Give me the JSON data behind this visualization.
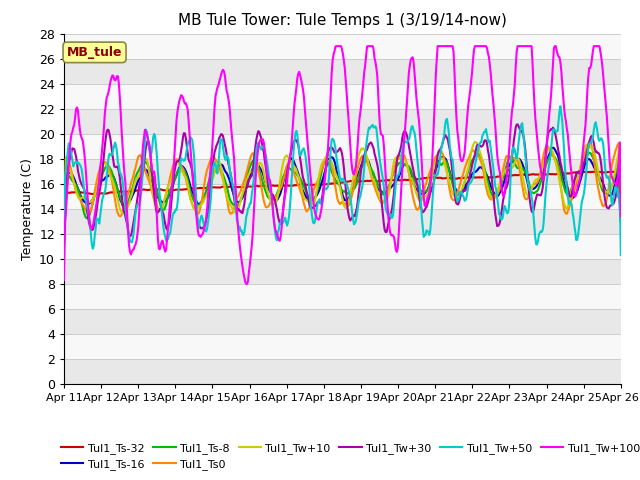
{
  "title": "MB Tule Tower: Tule Temps 1 (3/19/14-now)",
  "ylabel": "Temperature (C)",
  "ylim": [
    0,
    28
  ],
  "yticks": [
    0,
    2,
    4,
    6,
    8,
    10,
    12,
    14,
    16,
    18,
    20,
    22,
    24,
    26,
    28
  ],
  "xlim": [
    0,
    15
  ],
  "xtick_labels": [
    "Apr 11",
    "Apr 12",
    "Apr 13",
    "Apr 14",
    "Apr 15",
    "Apr 16",
    "Apr 17",
    "Apr 18",
    "Apr 19",
    "Apr 20",
    "Apr 21",
    "Apr 22",
    "Apr 23",
    "Apr 24",
    "Apr 25",
    "Apr 26"
  ],
  "legend_box_label": "MB_tule",
  "legend_box_color": "#8B0000",
  "legend_box_bg": "#FFFF99",
  "series": {
    "Tul1_Ts-32": {
      "color": "#CC0000",
      "linewidth": 1.5
    },
    "Tul1_Ts-16": {
      "color": "#0000CC",
      "linewidth": 1.5
    },
    "Tul1_Ts-8": {
      "color": "#00BB00",
      "linewidth": 1.5
    },
    "Tul1_Ts0": {
      "color": "#FF8800",
      "linewidth": 1.5
    },
    "Tul1_Tw+10": {
      "color": "#CCCC00",
      "linewidth": 1.5
    },
    "Tul1_Tw+30": {
      "color": "#AA00AA",
      "linewidth": 1.5
    },
    "Tul1_Tw+50": {
      "color": "#00CCCC",
      "linewidth": 1.5
    },
    "Tul1_Tw+100": {
      "color": "#FF00FF",
      "linewidth": 1.5
    }
  },
  "bg_band_color": "#e8e8e8",
  "bg_white_color": "#f8f8f8",
  "grid_color": "#cccccc",
  "background_color": "#ffffff"
}
